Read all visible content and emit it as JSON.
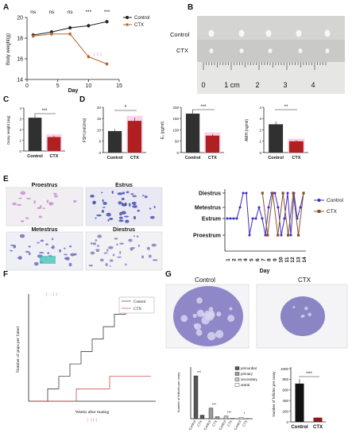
{
  "panels": {
    "A": "A",
    "B": "B",
    "C": "C",
    "D": "D",
    "E": "E",
    "F": "F",
    "G": "G"
  },
  "colors": {
    "control": "#222222",
    "ctx": "#b5682a",
    "pink": "#f070c0",
    "red": "#d03030",
    "blue": "#3a2dc8",
    "brown": "#8a5028"
  },
  "A": {
    "ylabel": "Body weight(g)",
    "xlabel": "Day",
    "yticks": [
      "14",
      "16",
      "18",
      "20"
    ],
    "xticks": [
      "0",
      "5",
      "10",
      "15"
    ],
    "sig": [
      "ns",
      "ns",
      "ns",
      "***",
      "***"
    ],
    "legend": [
      "Control",
      "CTX"
    ]
  },
  "B": {
    "control": "Control",
    "ctx": "CTX",
    "ruler": [
      "0",
      "1 cm",
      "2",
      "3",
      "4"
    ]
  },
  "C": {
    "ylabel": "Ovary weight (mg)",
    "yticks": [
      "0",
      "1",
      "2",
      "3",
      "4"
    ],
    "sig": "***",
    "xcat": [
      "Control",
      "CTX"
    ]
  },
  "D": {
    "fsh": {
      "ylabel": "FSH (mIU/ml)",
      "yticks": [
        "0",
        "5",
        "10",
        "15",
        "20"
      ],
      "sig": "*"
    },
    "e2": {
      "ylabel": "E₂ (pg/ml)",
      "yticks": [
        "0",
        "50",
        "100",
        "150",
        "200"
      ],
      "sig": "***"
    },
    "amh": {
      "ylabel": "AMH (ng/ml)",
      "yticks": [
        "0",
        "1",
        "2",
        "3",
        "4"
      ],
      "sig": "**"
    },
    "xcat": [
      "Control",
      "CTX"
    ]
  },
  "E": {
    "photos": [
      "Proestrus",
      "Estrus",
      "Metestrus",
      "Diestrus"
    ],
    "yticks": [
      "Diestrus",
      "Metestrus",
      "Estrum",
      "Proestrum"
    ],
    "xticks": [
      "1",
      "2",
      "3",
      "4",
      "5",
      "6",
      "7",
      "8",
      "9",
      "10",
      "11",
      "12",
      "13",
      "14"
    ],
    "xlabel": "Day",
    "legend": [
      "Control",
      "CTX"
    ]
  },
  "F": {
    "ylabel": "Number of pups per famel",
    "xlabel": "Weeks after mating",
    "legend": [
      "Control",
      "CTX"
    ]
  },
  "G": {
    "photos": [
      "Control",
      "CTX"
    ],
    "left_ylabel": "Number of follicles per ovary",
    "legend": [
      "primordial",
      "primary",
      "secondary",
      "antral"
    ],
    "sig": [
      "***",
      "***",
      "***",
      "*"
    ],
    "xcat": [
      "Control",
      "CTX",
      "Control",
      "CTX",
      "Control",
      "CTX",
      "Control",
      "CTX"
    ],
    "right_ylabel": "Number of follicles per ovary",
    "right_yticks": [
      "0",
      "200",
      "400",
      "600",
      "800",
      "1000"
    ],
    "right_sig": "***",
    "right_xcat": [
      "Control",
      "CTX"
    ]
  },
  "chart_data": [
    {
      "type": "line",
      "xlabel": "Day",
      "ylabel": "Body weight(g)",
      "ylim": [
        14,
        20
      ],
      "xlim": [
        0,
        15
      ],
      "x": [
        1,
        4,
        7,
        10,
        13
      ],
      "series": [
        {
          "name": "Control",
          "values": [
            18.3,
            18.6,
            19.0,
            19.2,
            19.6
          ]
        },
        {
          "name": "CTX",
          "values": [
            18.2,
            18.4,
            18.4,
            16.2,
            15.5
          ]
        }
      ]
    },
    {
      "type": "bar",
      "ylabel": "Ovary weight (mg)",
      "categories": [
        "Control",
        "CTX"
      ],
      "values": [
        3.1,
        1.3
      ],
      "ylim": [
        0,
        4
      ]
    },
    {
      "type": "bar",
      "ylabel": "FSH (mIU/ml)",
      "categories": [
        "Control",
        "CTX"
      ],
      "values": [
        9.5,
        14.0
      ],
      "ylim": [
        0,
        20
      ]
    },
    {
      "type": "bar",
      "ylabel": "E₂ (pg/ml)",
      "categories": [
        "Control",
        "CTX"
      ],
      "values": [
        172,
        75
      ],
      "ylim": [
        0,
        200
      ]
    },
    {
      "type": "bar",
      "ylabel": "AMH (ng/ml)",
      "categories": [
        "Control",
        "CTX"
      ],
      "values": [
        2.5,
        1.0
      ],
      "ylim": [
        0,
        4
      ]
    },
    {
      "type": "line",
      "xlabel": "Day",
      "series": [
        {
          "name": "Control",
          "values": [
            2,
            2,
            2,
            2,
            3,
            4,
            4,
            1,
            2,
            2,
            3,
            2,
            1,
            3,
            4,
            4,
            3,
            1,
            2,
            4,
            1,
            4,
            2,
            3,
            4
          ]
        },
        {
          "name": "CTX",
          "values": [
            4,
            1,
            4,
            1,
            4,
            1,
            4,
            1,
            4
          ]
        }
      ]
    },
    {
      "type": "line",
      "xlabel": "Weeks after mating",
      "ylabel": "Number of pups per famel",
      "series": [
        {
          "name": "Control",
          "values": [
            0,
            1,
            2,
            3,
            4,
            5,
            6,
            7,
            8
          ]
        },
        {
          "name": "CTX",
          "values": [
            0,
            1,
            2
          ]
        }
      ]
    },
    {
      "type": "bar",
      "ylabel": "Number of follicles per ovary",
      "categories": [
        "primordial",
        "primary",
        "secondary",
        "antral"
      ],
      "series": [
        {
          "name": "Control",
          "values": [
            600,
            150,
            40,
            20
          ]
        },
        {
          "name": "CTX",
          "values": [
            50,
            30,
            5,
            3
          ]
        }
      ]
    },
    {
      "type": "bar",
      "ylabel": "Number of follicles per ovary",
      "categories": [
        "Control",
        "CTX"
      ],
      "values": [
        720,
        80
      ],
      "ylim": [
        0,
        1000
      ]
    }
  ]
}
